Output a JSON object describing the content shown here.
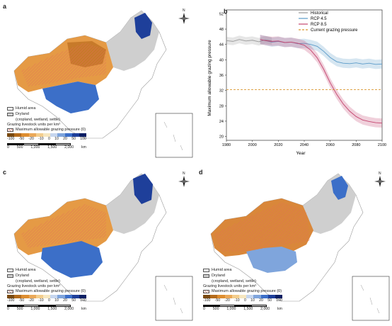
{
  "panels": [
    {
      "id": "a",
      "label": "a",
      "type": "map",
      "scenario": "historical"
    },
    {
      "id": "b",
      "label": "b",
      "type": "chart"
    },
    {
      "id": "c",
      "label": "c",
      "type": "map",
      "scenario": "rcp45"
    },
    {
      "id": "d",
      "label": "d",
      "type": "map",
      "scenario": "rcp85"
    }
  ],
  "map_legend": {
    "humid": "Humid area",
    "dryland": "Dryland",
    "dryland_sub": "(cropland, wetland, settle)",
    "grazing_title": "Grazing livestock units per km²",
    "hatch": "Maximum allowable grazing pressure (0)",
    "colorbar_ticks": [
      "-100",
      "-50",
      "-20",
      "-10",
      "0",
      "10",
      "20",
      "50",
      "100"
    ],
    "colorbar_colors": [
      "#7a4a12",
      "#b46b1c",
      "#dd8d30",
      "#eaa858",
      "#f3cd8d",
      "#f6e6bf",
      "#c6d6ee",
      "#7fa5dc",
      "#3c6fc8",
      "#1e3f9a",
      "#0b1e63"
    ],
    "scale_ticks": [
      "0",
      "500",
      "1,000",
      "1,500",
      "2,000"
    ],
    "scale_unit": "km",
    "north": "N"
  },
  "colors": {
    "humid": "#ffffff",
    "dryland": "#cfcfcf",
    "historical": "#9a9a9a",
    "rcp45": "#5b9bc9",
    "rcp85": "#c4456f",
    "current": "#d9962e",
    "hatch": "#e46a5a"
  },
  "chart_data": {
    "type": "line",
    "xlabel": "Year",
    "ylabel": "Maximum allowable grazing pressure",
    "xlim": [
      1980,
      2100
    ],
    "ylim": [
      19,
      53
    ],
    "xticks": [
      1980,
      2000,
      2020,
      2040,
      2060,
      2080,
      2100
    ],
    "yticks": [
      20,
      24,
      28,
      32,
      36,
      40,
      44,
      48,
      52
    ],
    "legend_position": "top-right",
    "series": [
      {
        "name": "Historical",
        "x": [
          1980,
          1985,
          1990,
          1995,
          2000,
          2005,
          2010,
          2015
        ],
        "y": [
          45.0,
          44.8,
          45.3,
          44.9,
          45.1,
          44.7,
          45.2,
          44.9
        ]
      },
      {
        "name": "RCP 4.5",
        "x": [
          2006,
          2010,
          2015,
          2020,
          2025,
          2030,
          2035,
          2040,
          2045,
          2050,
          2055,
          2060,
          2065,
          2070,
          2075,
          2080,
          2085,
          2090,
          2095,
          2100
        ],
        "y": [
          45.3,
          45.0,
          44.6,
          44.8,
          44.5,
          44.6,
          44.2,
          44.3,
          44.0,
          43.5,
          42.2,
          40.6,
          39.5,
          39.1,
          39.0,
          39.2,
          38.9,
          39.1,
          38.8,
          38.9
        ]
      },
      {
        "name": "RCP 8.5",
        "x": [
          2006,
          2010,
          2015,
          2020,
          2025,
          2030,
          2035,
          2040,
          2045,
          2050,
          2055,
          2060,
          2065,
          2070,
          2075,
          2080,
          2085,
          2090,
          2095,
          2100
        ],
        "y": [
          45.3,
          45.0,
          44.8,
          44.9,
          44.5,
          44.6,
          44.3,
          43.8,
          42.5,
          40.5,
          37.5,
          34.0,
          31.0,
          28.5,
          26.6,
          25.2,
          24.3,
          23.9,
          23.6,
          23.5
        ]
      },
      {
        "name": "Current grazing pressure",
        "x": [
          1980,
          2100
        ],
        "y": [
          32.2,
          32.2
        ]
      }
    ]
  }
}
